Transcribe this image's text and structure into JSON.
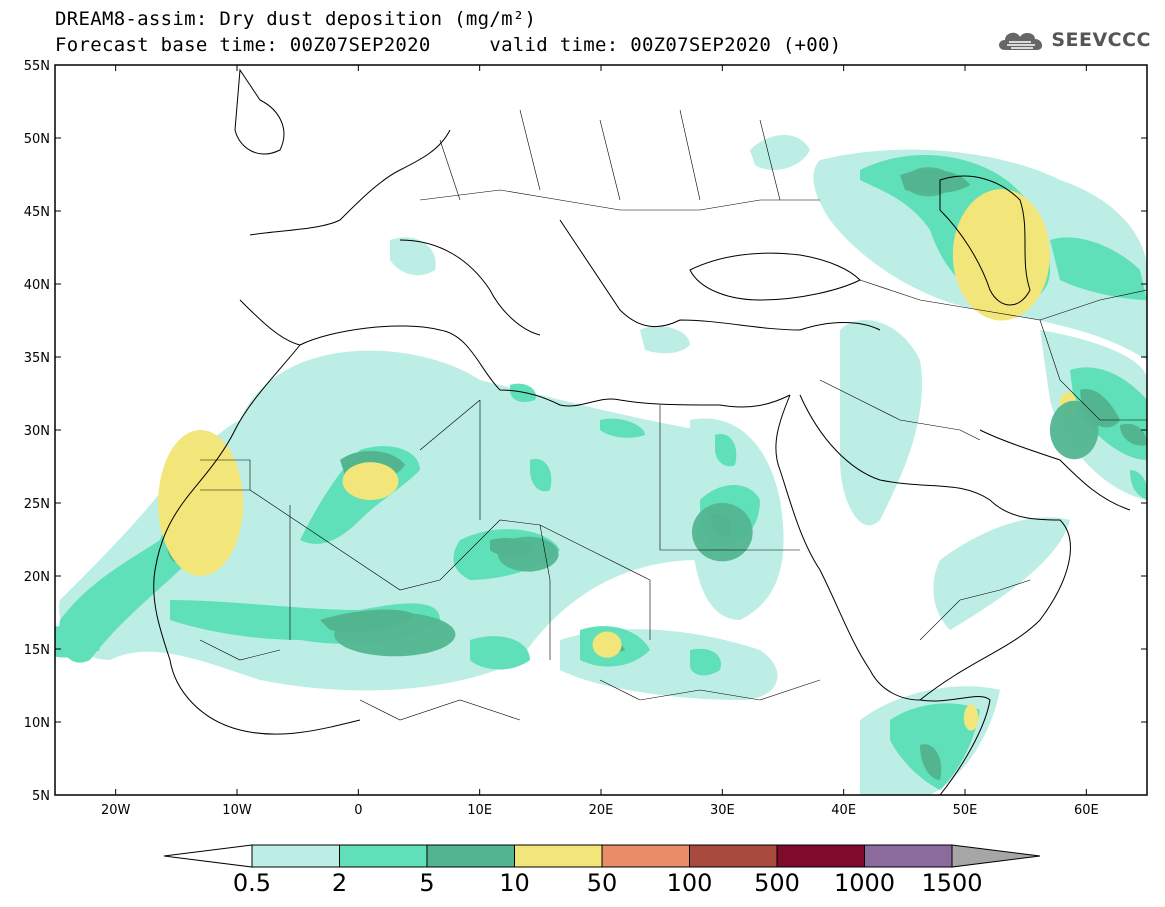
{
  "title": {
    "line1": "DREAM8-assim: Dry dust deposition (mg/m²)",
    "line2": "Forecast base time: 00Z07SEP2020     valid time: 00Z07SEP2020 (+00)"
  },
  "logo": {
    "text": "SEEVCCC",
    "icon": "cloud-logo-icon"
  },
  "map": {
    "lon_range": [
      -25,
      65
    ],
    "lat_range": [
      5,
      55
    ],
    "lon_ticks": [
      {
        "value": -20,
        "label": "20W"
      },
      {
        "value": -10,
        "label": "10W"
      },
      {
        "value": 0,
        "label": "0"
      },
      {
        "value": 10,
        "label": "10E"
      },
      {
        "value": 20,
        "label": "20E"
      },
      {
        "value": 30,
        "label": "30E"
      },
      {
        "value": 40,
        "label": "40E"
      },
      {
        "value": 50,
        "label": "50E"
      },
      {
        "value": 60,
        "label": "60E"
      }
    ],
    "lat_ticks": [
      {
        "value": 55,
        "label": "55N"
      },
      {
        "value": 50,
        "label": "50N"
      },
      {
        "value": 45,
        "label": "45N"
      },
      {
        "value": 40,
        "label": "40N"
      },
      {
        "value": 35,
        "label": "35N"
      },
      {
        "value": 30,
        "label": "30N"
      },
      {
        "value": 25,
        "label": "25N"
      },
      {
        "value": 20,
        "label": "20N"
      },
      {
        "value": 15,
        "label": "15N"
      },
      {
        "value": 10,
        "label": "10N"
      },
      {
        "value": 5,
        "label": "5N"
      }
    ]
  },
  "colorbar": {
    "labels": [
      "0.5",
      "2",
      "5",
      "10",
      "50",
      "100",
      "500",
      "1000",
      "1500"
    ],
    "colors": [
      "#bdeee6",
      "#5fe0b8",
      "#52b590",
      "#f2e57a",
      "#e98d68",
      "#a84a3e",
      "#7e0a2c",
      "#8b6a9e"
    ],
    "under_color": "#ffffff",
    "over_color": "#a6a6a6"
  },
  "dust_patches": [
    {
      "lon": -13,
      "lat": 25,
      "rx": 3.5,
      "ry": 5,
      "level": 3
    },
    {
      "lon": 1,
      "lat": 26.5,
      "rx": 2.3,
      "ry": 1.3,
      "level": 3
    },
    {
      "lon": 20.5,
      "lat": 15.3,
      "rx": 1.2,
      "ry": 0.9,
      "level": 3
    },
    {
      "lon": 53,
      "lat": 42,
      "rx": 4,
      "ry": 4.5,
      "level": 3
    },
    {
      "lon": 50.5,
      "lat": 10.3,
      "rx": 0.6,
      "ry": 0.9,
      "level": 3
    },
    {
      "lon": 58.5,
      "lat": 31.8,
      "rx": 0.7,
      "ry": 0.8,
      "level": 3
    },
    {
      "lon": 3,
      "lat": 16,
      "rx": 5,
      "ry": 1.5,
      "level": 2
    },
    {
      "lon": 14,
      "lat": 21.5,
      "rx": 2.5,
      "ry": 1.2,
      "level": 2
    },
    {
      "lon": 30,
      "lat": 23,
      "rx": 2.5,
      "ry": 2,
      "level": 2
    },
    {
      "lon": 47,
      "lat": 47,
      "rx": 2,
      "ry": 1,
      "level": 2
    },
    {
      "lon": 59,
      "lat": 30,
      "rx": 2,
      "ry": 2,
      "level": 2
    }
  ]
}
